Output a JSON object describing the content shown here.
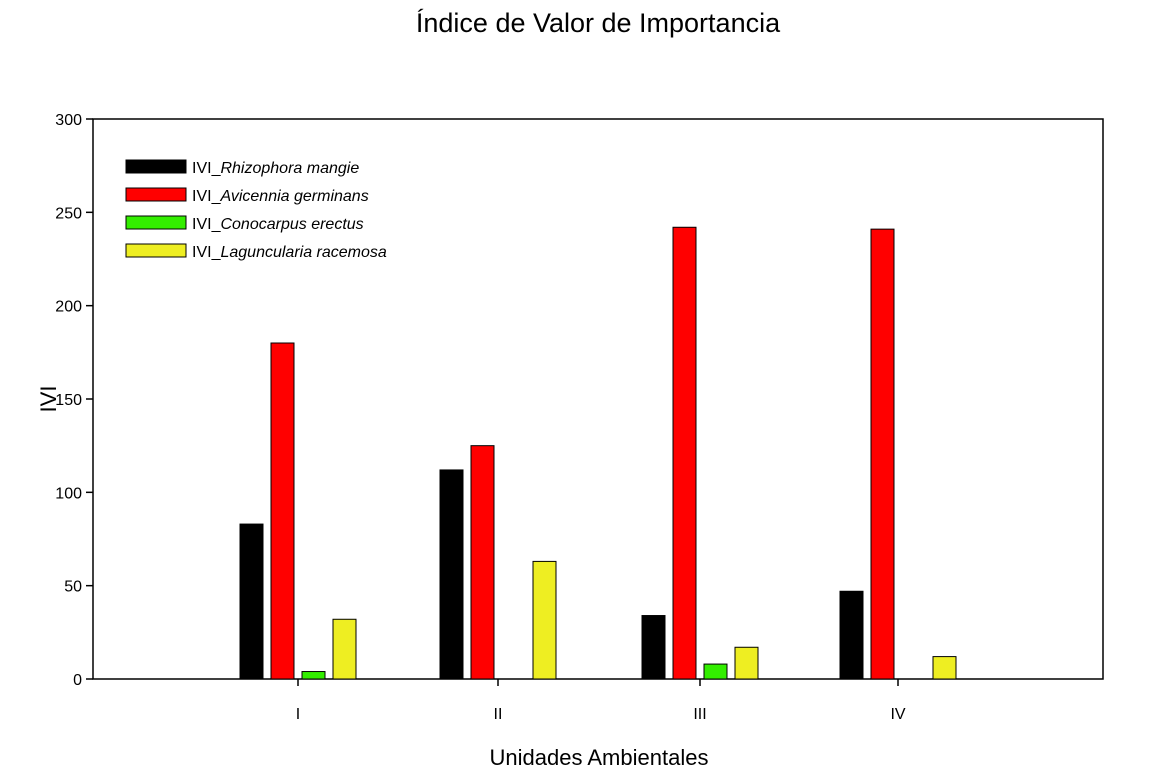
{
  "chart_data": {
    "type": "bar",
    "title": "Índice de Valor de Importancia",
    "xlabel": "Unidades Ambientales",
    "ylabel": "IVI",
    "categories": [
      "I",
      "II",
      "III",
      "IV"
    ],
    "ylim": [
      0,
      300
    ],
    "yticks": [
      0,
      50,
      100,
      150,
      200,
      250,
      300
    ],
    "grid": false,
    "legend_position": "top-left",
    "series": [
      {
        "prefix": "IVI_",
        "name": "Rhizophora mangie",
        "color": "#000000",
        "values": [
          83,
          112,
          34,
          47
        ]
      },
      {
        "prefix": "IVI_",
        "name": "Avicennia germinans",
        "color": "#ff0000",
        "values": [
          180,
          125,
          242,
          241
        ]
      },
      {
        "prefix": "IVI_",
        "name": "Conocarpus erectus",
        "color": "#33ee00",
        "values": [
          4,
          0,
          8,
          0
        ]
      },
      {
        "prefix": "IVI_",
        "name": "Laguncularia racemosa",
        "color": "#eeee22",
        "values": [
          32,
          63,
          17,
          12
        ]
      }
    ]
  }
}
